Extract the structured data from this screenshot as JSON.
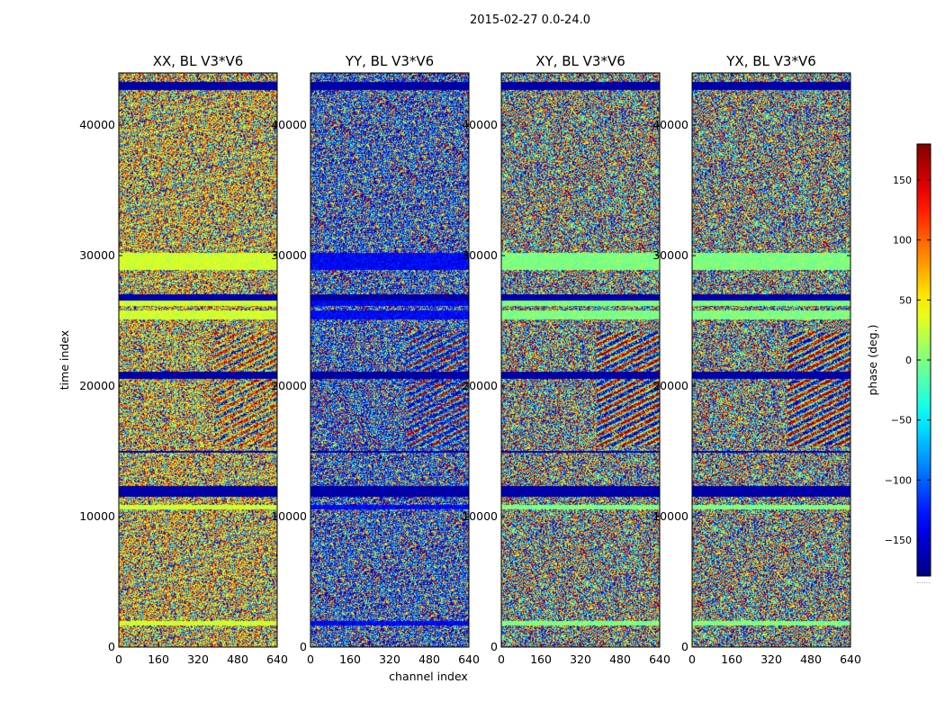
{
  "chart_data": {
    "type": "heatmap",
    "suptitle": "2015-02-27 0.0-24.0",
    "xlabel": "channel index",
    "ylabel": "time index",
    "xlim": [
      0,
      640
    ],
    "ylim": [
      0,
      44000
    ],
    "xticks": [
      "0",
      "160",
      "320",
      "480",
      "640"
    ],
    "yticks": [
      "0",
      "10000",
      "20000",
      "30000",
      "40000"
    ],
    "panels": [
      {
        "title": "XX, BL V3*V6",
        "pol": "XX"
      },
      {
        "title": "YY, BL V3*V6",
        "pol": "YY"
      },
      {
        "title": "XY, BL V3*V6",
        "pol": "XY"
      },
      {
        "title": "YX, BL V3*V6",
        "pol": "YX"
      }
    ],
    "colorbar": {
      "label": "phase (deg.)",
      "range": [
        -180,
        180
      ],
      "ticks": [
        "150",
        "100",
        "50",
        "0",
        "−50",
        "−100",
        "−150"
      ],
      "colormap": "jet",
      "below_label": "......"
    }
  }
}
